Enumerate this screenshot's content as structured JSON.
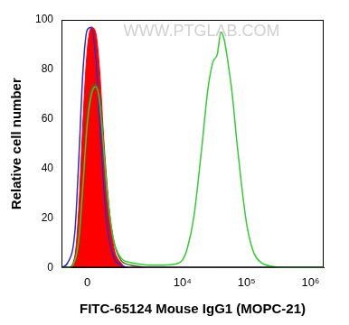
{
  "chart_data": {
    "type": "line",
    "x_label": "FITC-65124 Mouse IgG1 (MOPC-21)",
    "y_label": "Relative cell number",
    "annotation": "WWW.PTGLAB.COM",
    "x": [
      -700,
      -500,
      -300,
      -200,
      -100,
      0,
      100,
      200,
      300,
      400,
      500,
      700,
      1000,
      1500,
      2000,
      3000,
      5000,
      8000,
      10000,
      12000,
      15000,
      20000,
      25000,
      30000,
      35000,
      40000,
      45000,
      50000,
      60000,
      70000,
      80000,
      100000,
      130000,
      170000,
      250000,
      400000,
      1000000,
      1600000
    ],
    "series": [
      {
        "type": "line",
        "color": "#33cc33",
        "values": [
          0,
          0,
          3,
          12,
          34,
          58,
          70,
          73,
          67,
          50,
          32,
          12,
          4,
          2,
          1.5,
          1,
          1,
          1.5,
          3,
          8,
          20,
          48,
          72,
          83,
          86,
          95,
          92,
          85,
          70,
          52,
          38,
          18,
          6,
          2,
          0.5,
          0,
          0,
          0
        ]
      },
      {
        "type": "line",
        "color": "#4a6b2a",
        "values": [
          0,
          0,
          3,
          12,
          35,
          60,
          72,
          74,
          68,
          50,
          32,
          12,
          3,
          1,
          0.5,
          0,
          0,
          0,
          0,
          0,
          0,
          0,
          0,
          0,
          0,
          0,
          0,
          0,
          0,
          0,
          0,
          0,
          0,
          0,
          0,
          0,
          0,
          0
        ]
      },
      {
        "type": "line",
        "color": "#2b2bd6",
        "values": [
          0,
          2,
          15,
          45,
          80,
          96,
          97,
          85,
          60,
          35,
          18,
          5,
          1,
          0,
          0,
          0,
          0,
          0,
          0,
          0,
          0,
          0,
          0,
          0,
          0,
          0,
          0,
          0,
          0,
          0,
          0,
          0,
          0,
          0,
          0,
          0,
          0,
          0
        ]
      },
      {
        "type": "area",
        "color": "#ff0000",
        "values": [
          0,
          0,
          5,
          25,
          60,
          88,
          97,
          95,
          80,
          55,
          35,
          10,
          2,
          0,
          0,
          0,
          0,
          0,
          0,
          0,
          0,
          0,
          0,
          0,
          0,
          0,
          0,
          0,
          0,
          0,
          0,
          0,
          0,
          0,
          0,
          0,
          0,
          0
        ]
      }
    ],
    "xlim": [
      -700,
      1600000
    ],
    "xticks": [
      0,
      {
        "value": 10000,
        "label": "10⁴"
      },
      {
        "value": 100000,
        "label": "10⁵"
      },
      {
        "value": 1000000,
        "label": "10⁶"
      }
    ],
    "ylim": [
      0,
      100
    ],
    "yticks": [
      0,
      20,
      40,
      60,
      80,
      100
    ],
    "log": "x",
    "grid": false
  }
}
